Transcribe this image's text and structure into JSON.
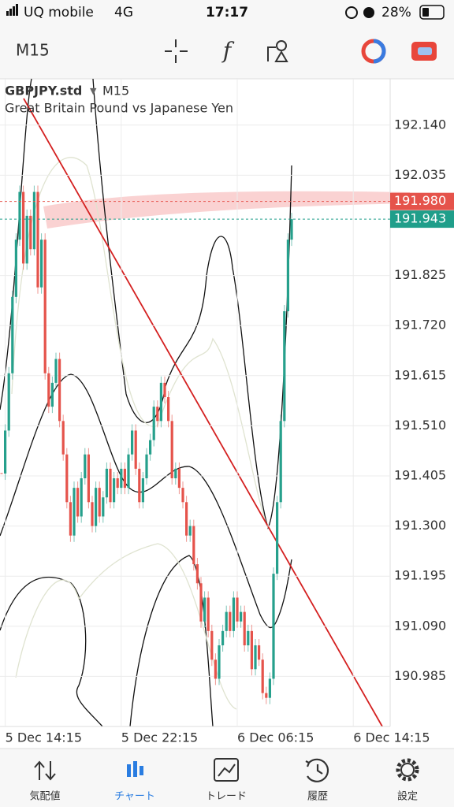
{
  "status_bar": {
    "carrier": "UQ mobile",
    "network": "4G",
    "time": "17:17",
    "battery": "28%"
  },
  "toolbar": {
    "timeframe": "M15"
  },
  "chart": {
    "symbol": "GBPJPY.std",
    "timeframe": "M15",
    "description": "Great Britain Pound vs Japanese Yen",
    "ylim": [
      190.88,
      192.237
    ],
    "yticks": [
      {
        "value": 192.14,
        "label": "192.140"
      },
      192.035,
      191.825,
      {
        "value": 191.72,
        "label": "191.720"
      },
      191.615,
      {
        "value": 191.51,
        "label": "191.510"
      },
      191.405,
      {
        "value": 191.3,
        "label": "191.300"
      },
      191.195,
      {
        "value": 191.09,
        "label": "191.090"
      },
      190.985
    ],
    "price_lines": [
      {
        "value": 191.98,
        "label": "191.980",
        "color": "#e5534b"
      },
      {
        "value": 191.943,
        "label": "191.943",
        "color": "#1f9e8a"
      }
    ],
    "xticks": [
      {
        "index": 1,
        "label": "5 Dec 14:15"
      },
      {
        "index": 33,
        "label": "5 Dec 22:15"
      },
      {
        "index": 65,
        "label": "6 Dec 06:15"
      },
      {
        "index": 97,
        "label": "6 Dec 14:15"
      }
    ],
    "up_color": "#26a08c",
    "down_color": "#e5534b",
    "closes": [
      191.41,
      191.5,
      191.62,
      191.78,
      191.9,
      192.0,
      191.85,
      191.95,
      191.88,
      192.0,
      191.8,
      191.9,
      191.62,
      191.55,
      191.6,
      191.65,
      191.52,
      191.45,
      191.35,
      191.28,
      191.38,
      191.32,
      191.4,
      191.45,
      191.35,
      191.3,
      191.38,
      191.32,
      191.36,
      191.42,
      191.35,
      191.4,
      191.38,
      191.42,
      191.38,
      191.45,
      191.5,
      191.42,
      191.35,
      191.4,
      191.45,
      191.48,
      191.55,
      191.52,
      191.6,
      191.57,
      191.52,
      191.4,
      191.42,
      191.38,
      191.35,
      191.28,
      191.3,
      191.22,
      191.18,
      191.1,
      191.15,
      191.08,
      191.02,
      190.98,
      191.05,
      191.08,
      191.12,
      191.08,
      191.15,
      191.1,
      191.12,
      191.05,
      191.08,
      191.0,
      191.05,
      191.02,
      190.95,
      190.94,
      190.98,
      191.2,
      191.35,
      191.52,
      191.75,
      191.9,
      191.943
    ]
  },
  "nav": [
    {
      "label": "気配値"
    },
    {
      "label": "チャート"
    },
    {
      "label": "トレード"
    },
    {
      "label": "履歴"
    },
    {
      "label": "設定"
    }
  ]
}
